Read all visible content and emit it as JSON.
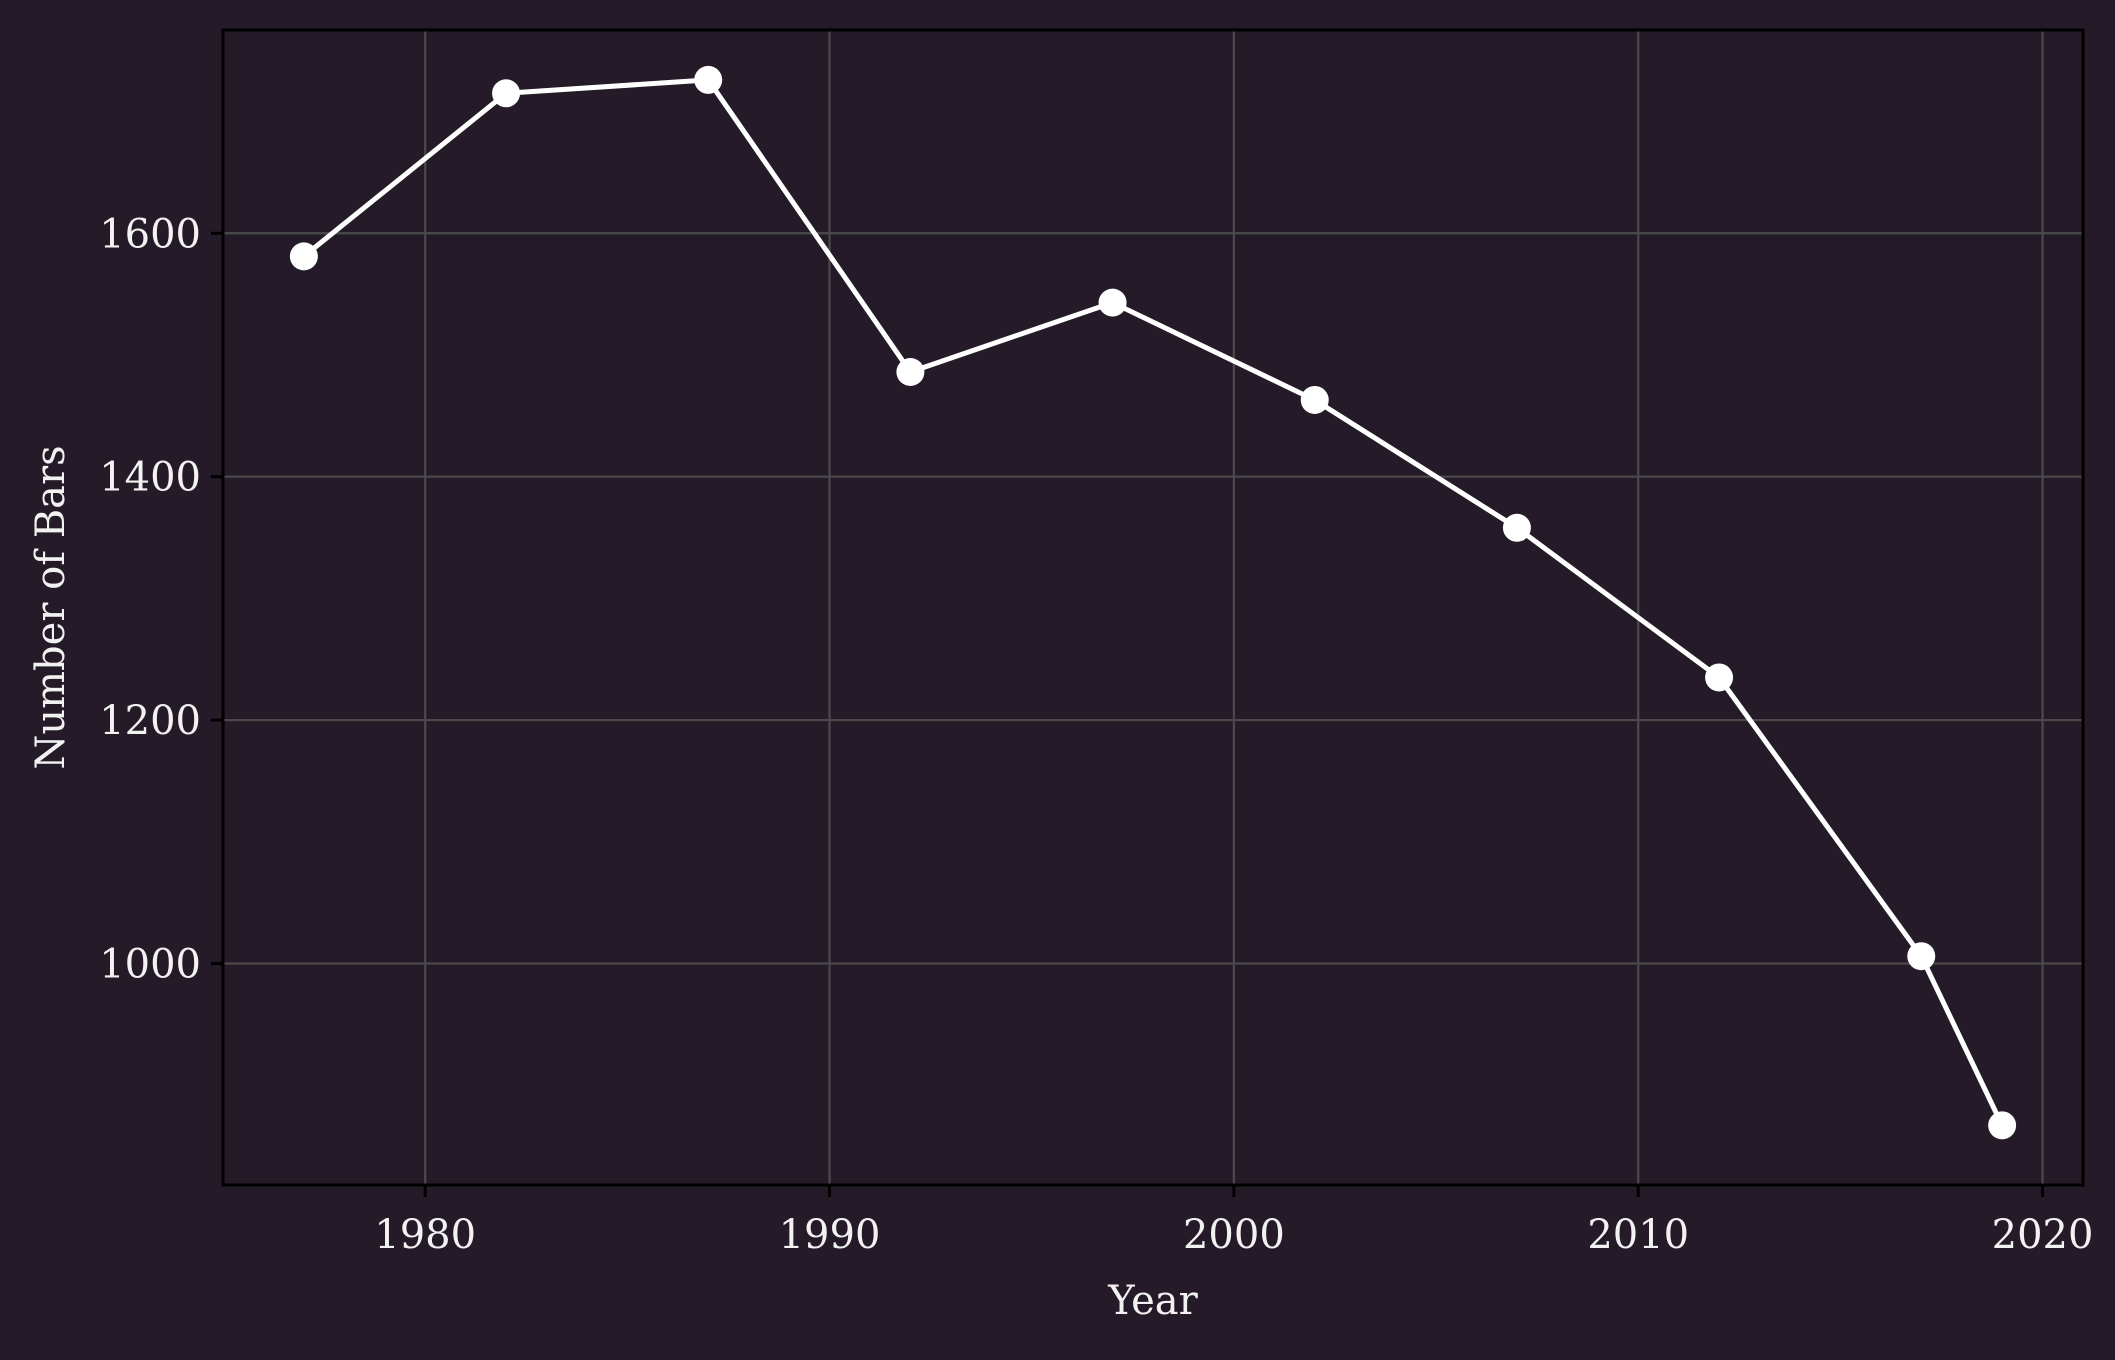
{
  "chart_data": {
    "type": "line",
    "title": "",
    "xlabel": "Year",
    "ylabel": "Number of Bars",
    "xlim": [
      1975,
      2021
    ],
    "ylim": [
      818,
      1767
    ],
    "xticks": [
      1980,
      1990,
      2000,
      2010,
      2020
    ],
    "yticks": [
      1000,
      1200,
      1400,
      1600
    ],
    "grid": true,
    "legend": "none",
    "series": [
      {
        "x": [
          1977,
          1982,
          1987,
          1992,
          1997,
          2002,
          2007,
          2012,
          2017,
          2019
        ],
        "y": [
          1581,
          1715,
          1726,
          1486,
          1543,
          1463,
          1358,
          1235,
          1006,
          867
        ]
      }
    ],
    "colors": {
      "background": "#251b28",
      "line": "#ffffff",
      "marker": "#ffffff",
      "grid": "#4a4a4a",
      "text": "#f2f2f2",
      "frame": "#000000"
    }
  }
}
